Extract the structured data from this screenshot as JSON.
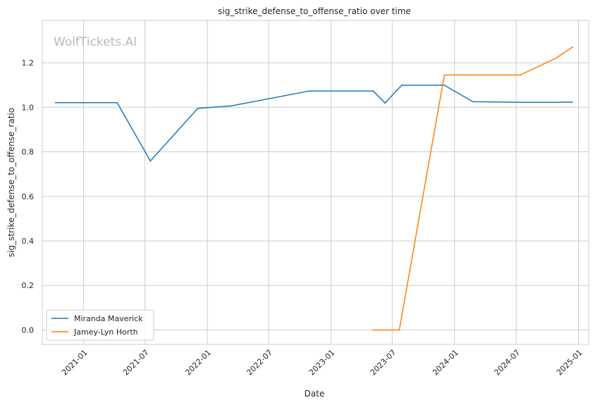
{
  "chart_data": {
    "type": "line",
    "title": "sig_strike_defense_to_offense_ratio over time",
    "xlabel": "Date",
    "ylabel": "sig_strike_defense_to_offense_ratio",
    "watermark": "WolfTickets.AI",
    "xlim": [
      "2020-09-01",
      "2025-01-31"
    ],
    "ylim": [
      -0.065,
      1.39
    ],
    "x_ticks": [
      "2021-01",
      "2021-07",
      "2022-01",
      "2022-07",
      "2023-01",
      "2023-07",
      "2024-01",
      "2024-07",
      "2025-01"
    ],
    "y_ticks": [
      "0.0",
      "0.2",
      "0.4",
      "0.6",
      "0.8",
      "1.0",
      "1.2"
    ],
    "grid": true,
    "legend_position": "lower-left",
    "series": [
      {
        "name": "Miranda Maverick",
        "color": "#1f77b4",
        "x": [
          "2020-10-10",
          "2021-04-10",
          "2021-07-17",
          "2021-12-04",
          "2022-03-12",
          "2022-10-29",
          "2023-05-06",
          "2023-06-10",
          "2023-07-29",
          "2023-12-02",
          "2024-02-24",
          "2024-07-13",
          "2024-10-26",
          "2024-12-14"
        ],
        "values": [
          1.021,
          1.021,
          0.759,
          0.995,
          1.006,
          1.073,
          1.073,
          1.019,
          1.099,
          1.099,
          1.025,
          1.022,
          1.022,
          1.023
        ]
      },
      {
        "name": "Jamey-Lyn Horth",
        "color": "#ff7f0e",
        "x": [
          "2023-05-06",
          "2023-07-22",
          "2023-12-02",
          "2024-07-13",
          "2024-10-26",
          "2024-12-14"
        ],
        "values": [
          0.0,
          0.0,
          1.145,
          1.145,
          1.22,
          1.27
        ]
      }
    ]
  }
}
